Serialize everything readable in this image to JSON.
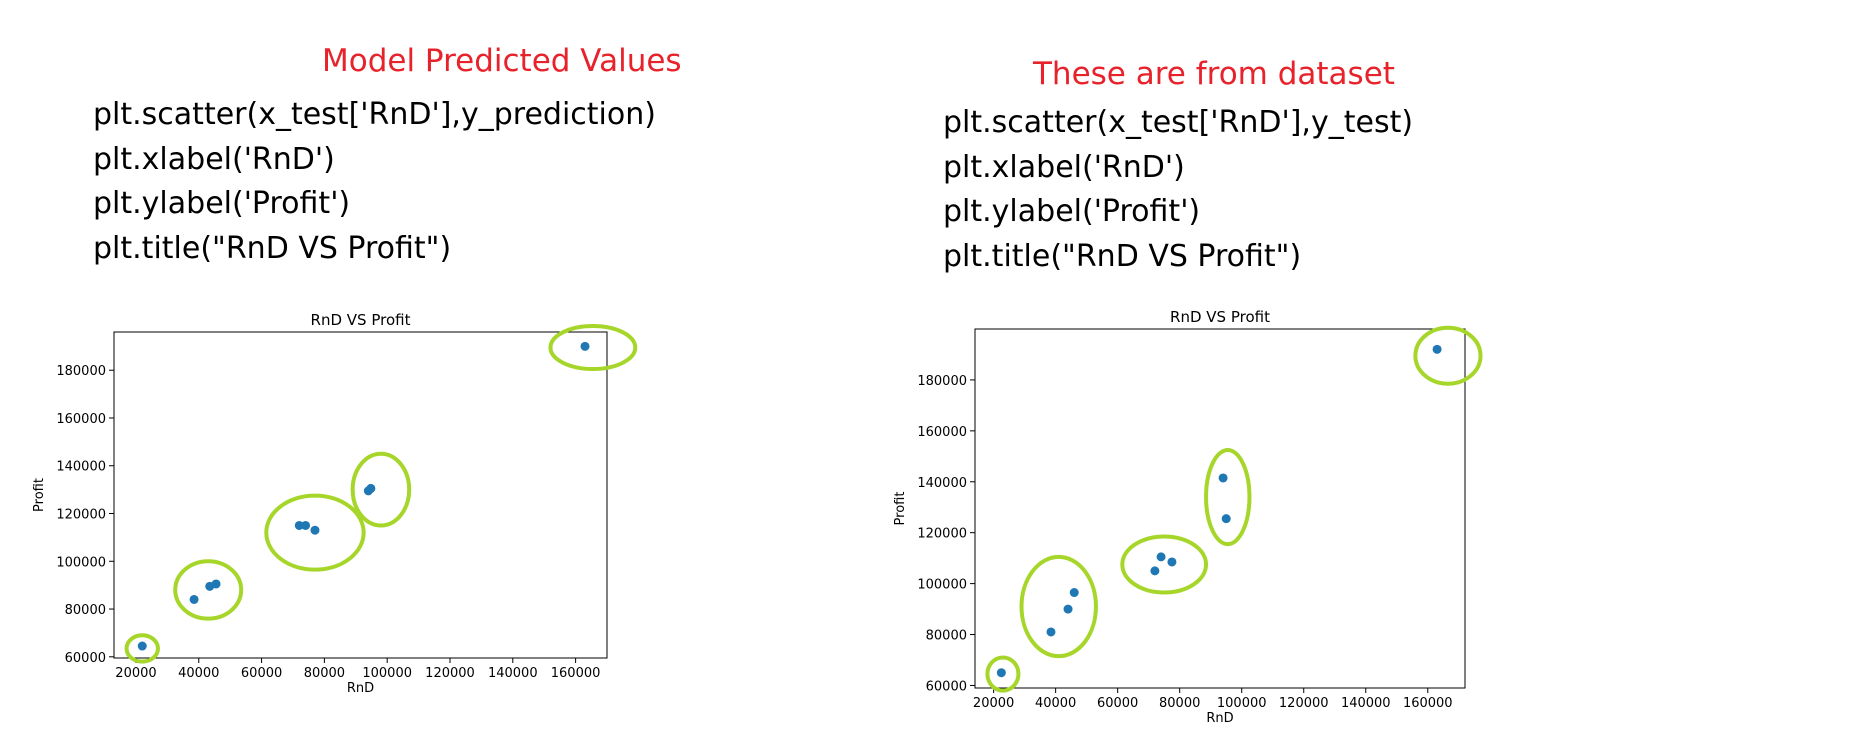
{
  "panels": [
    {
      "heading": "Model Predicted Values",
      "code_lines": [
        "plt.scatter(x_test['RnD'],y_prediction)",
        "plt.xlabel('RnD')",
        "plt.ylabel('Profit')",
        "plt.title(\"RnD VS Profit\")"
      ]
    },
    {
      "heading": "These are from dataset",
      "code_lines": [
        "plt.scatter(x_test['RnD'],y_test)",
        "plt.xlabel('RnD')",
        "plt.ylabel('Profit')",
        "plt.title(\"RnD VS Profit\")"
      ]
    }
  ],
  "colors": {
    "heading": "#e8222b",
    "points": "#1f77b4",
    "highlight": "#a6d62a"
  },
  "chart_data": [
    {
      "type": "scatter",
      "title": "RnD VS Profit",
      "xlabel": "RnD",
      "ylabel": "Profit",
      "xlim": [
        13000,
        170000
      ],
      "ylim": [
        59500,
        196000
      ],
      "xticks": [
        20000,
        40000,
        60000,
        80000,
        100000,
        120000,
        140000,
        160000
      ],
      "yticks": [
        60000,
        80000,
        100000,
        120000,
        140000,
        160000,
        180000
      ],
      "grid": false,
      "series": [
        {
          "x": [
            22000,
            38500,
            43500,
            45500,
            72000,
            74000,
            77000,
            94000,
            94800,
            163000
          ],
          "y": [
            64500,
            84000,
            89500,
            90500,
            115000,
            115000,
            113000,
            129500,
            130500,
            190000
          ]
        }
      ],
      "highlight_groups": [
        {
          "cx": 22000,
          "cy": 63500,
          "rx": 5000,
          "ry": 5500
        },
        {
          "cx": 43000,
          "cy": 88000,
          "rx": 10500,
          "ry": 12000
        },
        {
          "cx": 77000,
          "cy": 112000,
          "rx": 15500,
          "ry": 15500
        },
        {
          "cx": 98000,
          "cy": 130000,
          "rx": 9000,
          "ry": 15000
        },
        {
          "cx": 165500,
          "cy": 189500,
          "rx": 13500,
          "ry": 9000
        }
      ]
    },
    {
      "type": "scatter",
      "title": "RnD VS Profit",
      "xlabel": "RnD",
      "ylabel": "Profit",
      "xlim": [
        14000,
        172000
      ],
      "ylim": [
        59000,
        200000
      ],
      "xticks": [
        20000,
        40000,
        60000,
        80000,
        100000,
        120000,
        140000,
        160000
      ],
      "yticks": [
        60000,
        80000,
        100000,
        120000,
        140000,
        160000,
        180000
      ],
      "grid": false,
      "series": [
        {
          "x": [
            22500,
            38500,
            44000,
            46000,
            72000,
            74000,
            77500,
            94000,
            95000,
            163000
          ],
          "y": [
            65000,
            81000,
            90000,
            96500,
            105000,
            110500,
            108500,
            141500,
            125500,
            192000
          ]
        }
      ],
      "highlight_groups": [
        {
          "cx": 23000,
          "cy": 64500,
          "rx": 5000,
          "ry": 6500
        },
        {
          "cx": 41000,
          "cy": 91000,
          "rx": 12000,
          "ry": 19500
        },
        {
          "cx": 75000,
          "cy": 107500,
          "rx": 13500,
          "ry": 11000
        },
        {
          "cx": 95500,
          "cy": 134000,
          "rx": 7000,
          "ry": 18500
        },
        {
          "cx": 166500,
          "cy": 189500,
          "rx": 10500,
          "ry": 11000
        }
      ]
    }
  ]
}
